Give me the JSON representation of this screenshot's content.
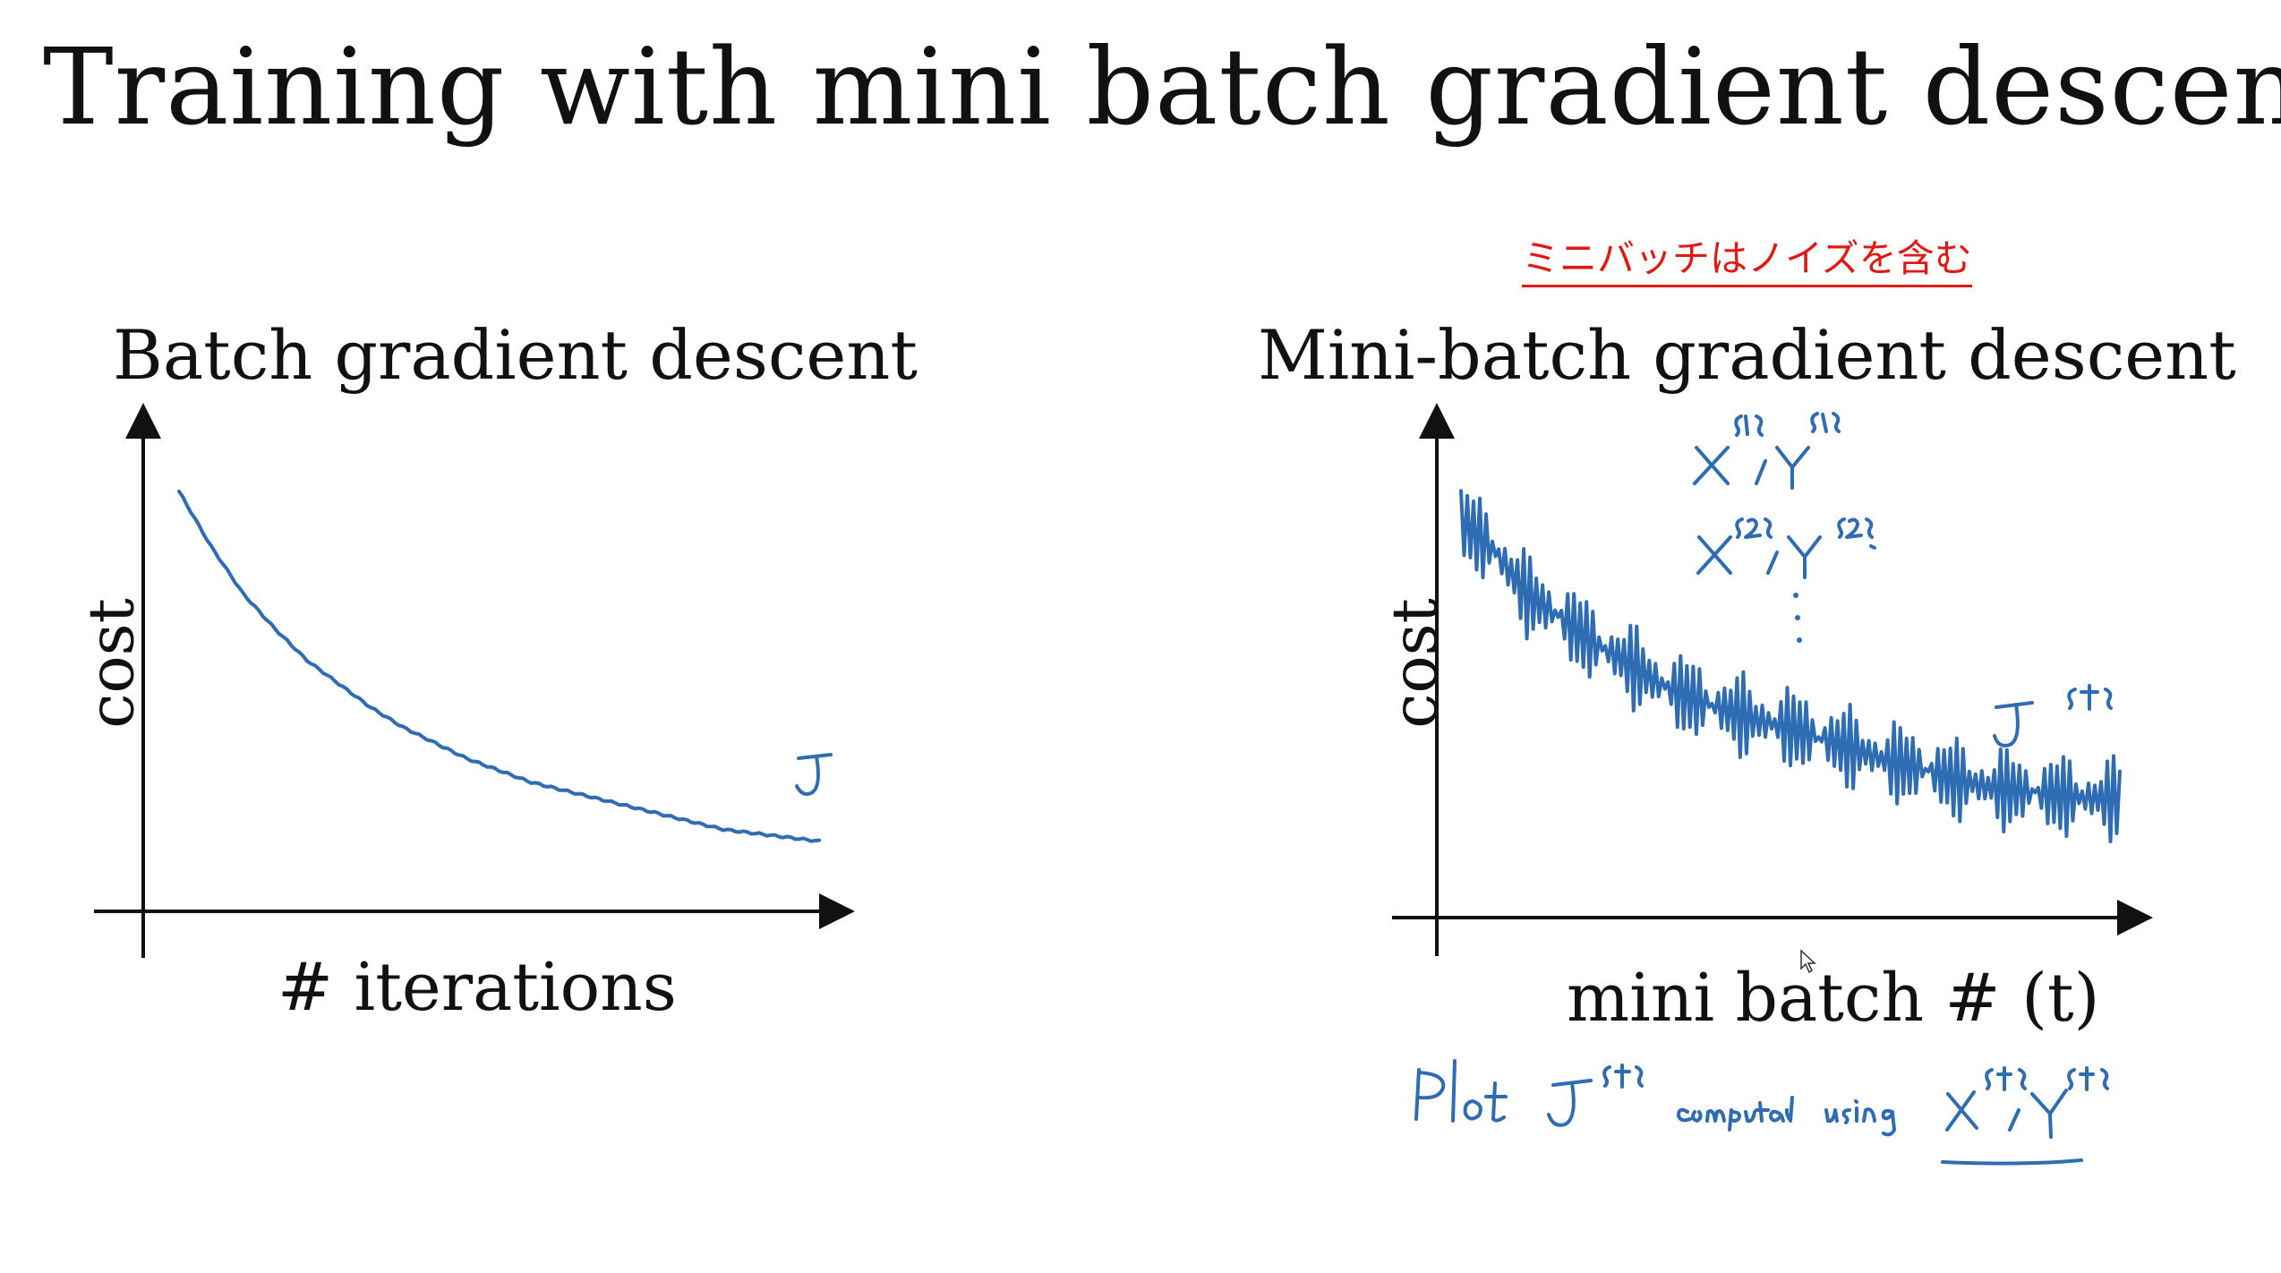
{
  "title": "Training with mini batch gradient descent",
  "annotation_jp": "ミニバッチはノイズを含む",
  "chart_data": [
    {
      "type": "line",
      "title": "Batch gradient descent",
      "xlabel": "# iterations",
      "ylabel": "cost",
      "series_label": "J",
      "x": [
        0,
        5,
        10,
        15,
        20,
        25,
        30,
        35,
        40,
        45,
        50,
        55,
        60,
        65,
        70,
        75,
        80,
        85,
        90,
        95,
        100
      ],
      "values": [
        100,
        86,
        74,
        65,
        57,
        51,
        45,
        40,
        36,
        32,
        29,
        26,
        24,
        22,
        20,
        18,
        16,
        14,
        13,
        12,
        11
      ],
      "ylim": [
        0,
        110
      ],
      "grid": false
    },
    {
      "type": "line",
      "title": "Mini-batch gradient descent",
      "xlabel": "mini batch # (t)",
      "ylabel": "cost",
      "series_label": "J{t}",
      "x": [
        0,
        5,
        10,
        15,
        20,
        25,
        30,
        35,
        40,
        45,
        50,
        55,
        60,
        65,
        70,
        75,
        80,
        85,
        90,
        95,
        100
      ],
      "values": [
        100,
        92,
        80,
        74,
        67,
        62,
        56,
        52,
        49,
        46,
        44,
        41,
        38,
        35,
        33,
        30,
        28,
        27,
        26,
        25,
        25
      ],
      "noise": "high-frequency oscillation of about ±8 around the trend",
      "ylim": [
        0,
        110
      ],
      "grid": false,
      "annotations": [
        "X{1}, Y{1}",
        "X{2}, Y{2}",
        "⋮",
        "J{t}",
        "Plot J{t} computed using X{t}, Y{t}"
      ]
    }
  ]
}
